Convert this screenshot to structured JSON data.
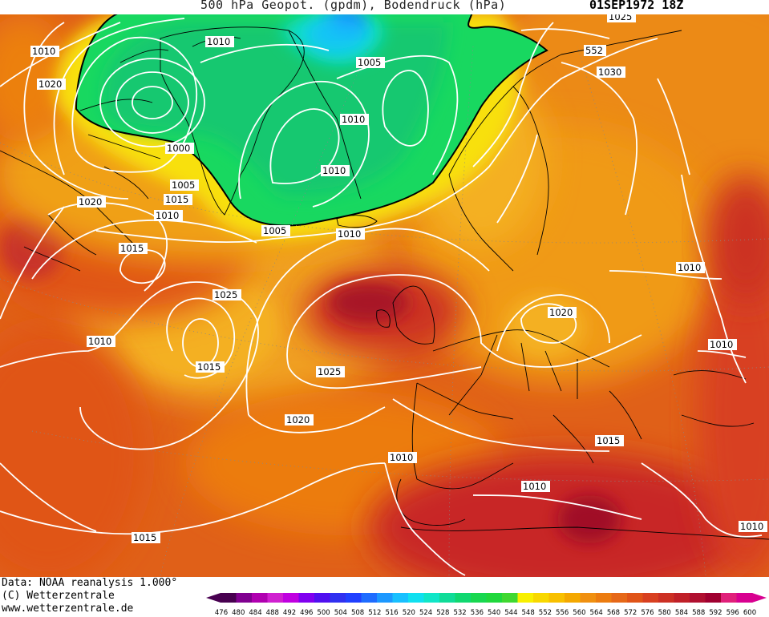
{
  "header": {
    "title": "500 hPa Geopot. (gpdm), Bodendruck (hPa)",
    "date": "01SEP1972 18Z"
  },
  "footer": {
    "data_source": "Data: NOAA reanalysis 1.000°",
    "copyright": "(C) Wetterzentrale",
    "url": "www.wetterzentrale.de"
  },
  "colors": {
    "high_geopotential": "#c8202a",
    "mid_geopotential": "#ec7a10",
    "low_geopotential": "#14d060",
    "isobar_line": "#ffffff",
    "coastline": "#000000"
  },
  "colorbar": {
    "ticks": [
      "476",
      "480",
      "484",
      "488",
      "492",
      "496",
      "500",
      "504",
      "508",
      "512",
      "516",
      "520",
      "524",
      "528",
      "532",
      "536",
      "540",
      "544",
      "548",
      "552",
      "556",
      "560",
      "564",
      "568",
      "572",
      "576",
      "580",
      "584",
      "588",
      "592",
      "596",
      "600"
    ],
    "colors": [
      "#480050",
      "#800090",
      "#b000b0",
      "#d020d0",
      "#c000e0",
      "#8000f0",
      "#5010f0",
      "#3030f0",
      "#2040ff",
      "#1e6cff",
      "#1c98ff",
      "#18c0ff",
      "#10e0f0",
      "#10e6c8",
      "#10dc98",
      "#10d870",
      "#18d850",
      "#20d83c",
      "#40d830",
      "#f8f000",
      "#f8d800",
      "#f8c000",
      "#f4a800",
      "#f09010",
      "#ec7c10",
      "#e66818",
      "#e05418",
      "#d84020",
      "#cc3024",
      "#c02028",
      "#b01030",
      "#a00030",
      "#e0207a",
      "#d80090"
    ]
  },
  "isobar_labels": [
    "1010",
    "1005",
    "1025",
    "552",
    "1030",
    "1020",
    "1000",
    "1010",
    "1005",
    "1010",
    "1015",
    "1020",
    "1010",
    "1005",
    "1010",
    "1015",
    "1025",
    "1015",
    "1010",
    "1010",
    "1020",
    "1010",
    "1025",
    "1020",
    "1010",
    "1015",
    "1010",
    "1010",
    "1015",
    "1010"
  ]
}
